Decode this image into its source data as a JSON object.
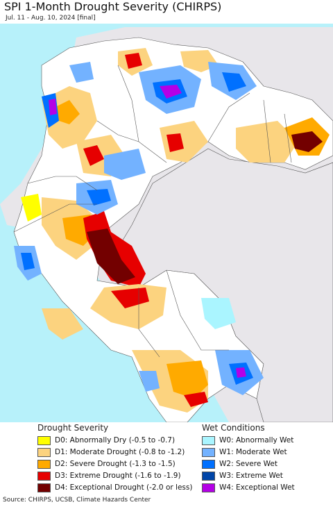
{
  "title": "SPI 1-Month Drought Severity (CHIRPS)",
  "subtitle": "Jul. 11 - Aug. 10, 2024 [final]",
  "legend": {
    "drought_title": "Drought Severity",
    "wet_title": "Wet Conditions",
    "drought_items": [
      {
        "label": "D0: Abnormally Dry (-0.5 to -0.7)",
        "color": "#ffff00"
      },
      {
        "label": "D1: Moderate Drought (-0.8 to -1.2)",
        "color": "#fcd37f"
      },
      {
        "label": "D2: Severe Drought (-1.3 to -1.5)",
        "color": "#ffaa00"
      },
      {
        "label": "D3: Extreme Drought (-1.6 to -1.9)",
        "color": "#e60000"
      },
      {
        "label": "D4: Exceptional Drought (-2.0 or less)",
        "color": "#730000"
      }
    ],
    "wet_items": [
      {
        "label": "W0: Abnormally Wet",
        "color": "#aaf5ff"
      },
      {
        "label": "W1: Moderate Wet",
        "color": "#73b2ff"
      },
      {
        "label": "W2: Severe Wet",
        "color": "#0070ff"
      },
      {
        "label": "W3: Extreme Wet",
        "color": "#0045a8"
      },
      {
        "label": "W4: Exceptional Wet",
        "color": "#b400e6"
      }
    ]
  },
  "source": "Source: CHIRPS, UCSB, Climate Hazards Center",
  "colors": {
    "ocean": "#b7f1fa",
    "land_outside": "#e8e6ea",
    "land_normal": "#ffffff",
    "borders": "#555555"
  }
}
